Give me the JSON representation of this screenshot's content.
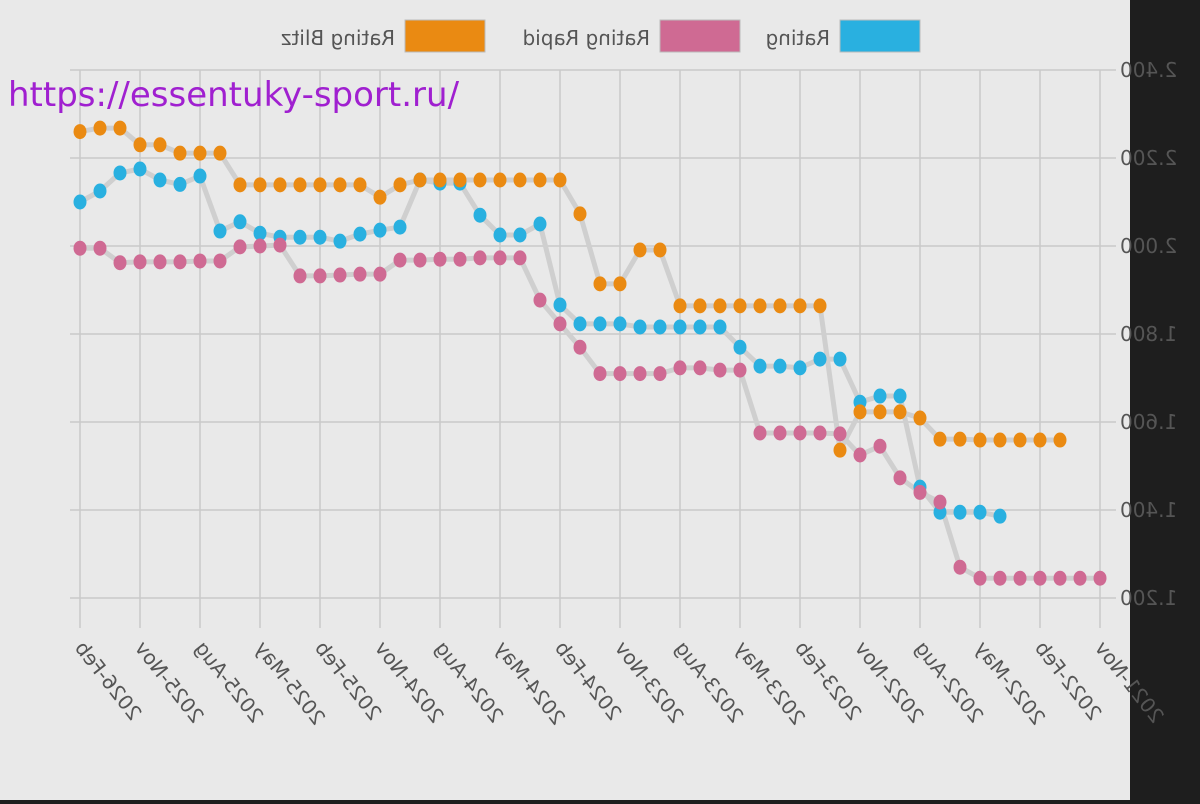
{
  "watermark": "https://essentuky-sport.ru/",
  "chart_data": {
    "type": "line",
    "categories": [
      "2021-Nov",
      null,
      null,
      "2022-Feb",
      null,
      null,
      "2022-May",
      null,
      null,
      "2022-Aug",
      null,
      null,
      "2022-Nov",
      null,
      null,
      "2023-Feb",
      null,
      null,
      "2023-May",
      null,
      null,
      "2023-Aug",
      null,
      null,
      "2023-Nov",
      null,
      null,
      "2024-Feb",
      null,
      null,
      "2024-May",
      null,
      null,
      "2024-Aug",
      null,
      null,
      "2024-Nov",
      null,
      null,
      "2025-Feb",
      null,
      null,
      "2025-May",
      null,
      null,
      "2025-Aug",
      null,
      null,
      "2025-Nov",
      null,
      null,
      "2026-Feb"
    ],
    "series": [
      {
        "name": "Rating",
        "color": "#29b0e0",
        "values": [
          null,
          null,
          null,
          null,
          null,
          1386,
          1395,
          1395,
          1395,
          1452,
          1659,
          1659,
          1645,
          1743,
          1743,
          1723,
          1727,
          1727,
          1770,
          1816,
          1816,
          1816,
          1816,
          1816,
          1823,
          1823,
          1823,
          1866,
          2050,
          2025,
          2025,
          2070,
          2143,
          2143,
          2150,
          2043,
          2036,
          2027,
          2011,
          2020,
          2020,
          2020,
          2029,
          2055,
          2034,
          2159,
          2140,
          2150,
          2175,
          2166,
          2125,
          2100
        ]
      },
      {
        "name": "Rating Rapid",
        "color": "#cf6a93",
        "values": [
          1245,
          1245,
          1245,
          1245,
          1245,
          1245,
          1245,
          1270,
          1418,
          1440,
          1473,
          1545,
          1525,
          1573,
          1575,
          1575,
          1575,
          1575,
          1718,
          1718,
          1723,
          1723,
          1710,
          1710,
          1710,
          1710,
          1770,
          1823,
          1877,
          1973,
          1973,
          1973,
          1970,
          1970,
          1968,
          1968,
          1936,
          1936,
          1934,
          1932,
          1932,
          2002,
          2000,
          1998,
          1966,
          1966,
          1964,
          1964,
          1964,
          1962,
          1995,
          1995
        ]
      },
      {
        "name": "Rating Blitz",
        "color": "#ea8a12",
        "values": [
          null,
          null,
          1559,
          1559,
          1559,
          1559,
          1559,
          1561,
          1561,
          1609,
          1623,
          1623,
          1623,
          1536,
          1864,
          1864,
          1864,
          1864,
          1864,
          1864,
          1864,
          1864,
          1991,
          1991,
          1914,
          1914,
          2073,
          2150,
          2150,
          2150,
          2150,
          2150,
          2150,
          2150,
          2150,
          2139,
          2111,
          2139,
          2139,
          2139,
          2139,
          2139,
          2139,
          2139,
          2211,
          2211,
          2211,
          2230,
          2230,
          2268,
          2268,
          2260
        ]
      }
    ],
    "ylim": [
      1150,
      2400
    ],
    "yticks": [
      {
        "value": 1200,
        "label": "1.200"
      },
      {
        "value": 1400,
        "label": "1.400"
      },
      {
        "value": 1600,
        "label": "1.600"
      },
      {
        "value": 1800,
        "label": "1.800"
      },
      {
        "value": 2000,
        "label": "2.000"
      },
      {
        "value": 2200,
        "label": "2.200"
      },
      {
        "value": 2400,
        "label": "2.400"
      }
    ],
    "grid": true
  }
}
